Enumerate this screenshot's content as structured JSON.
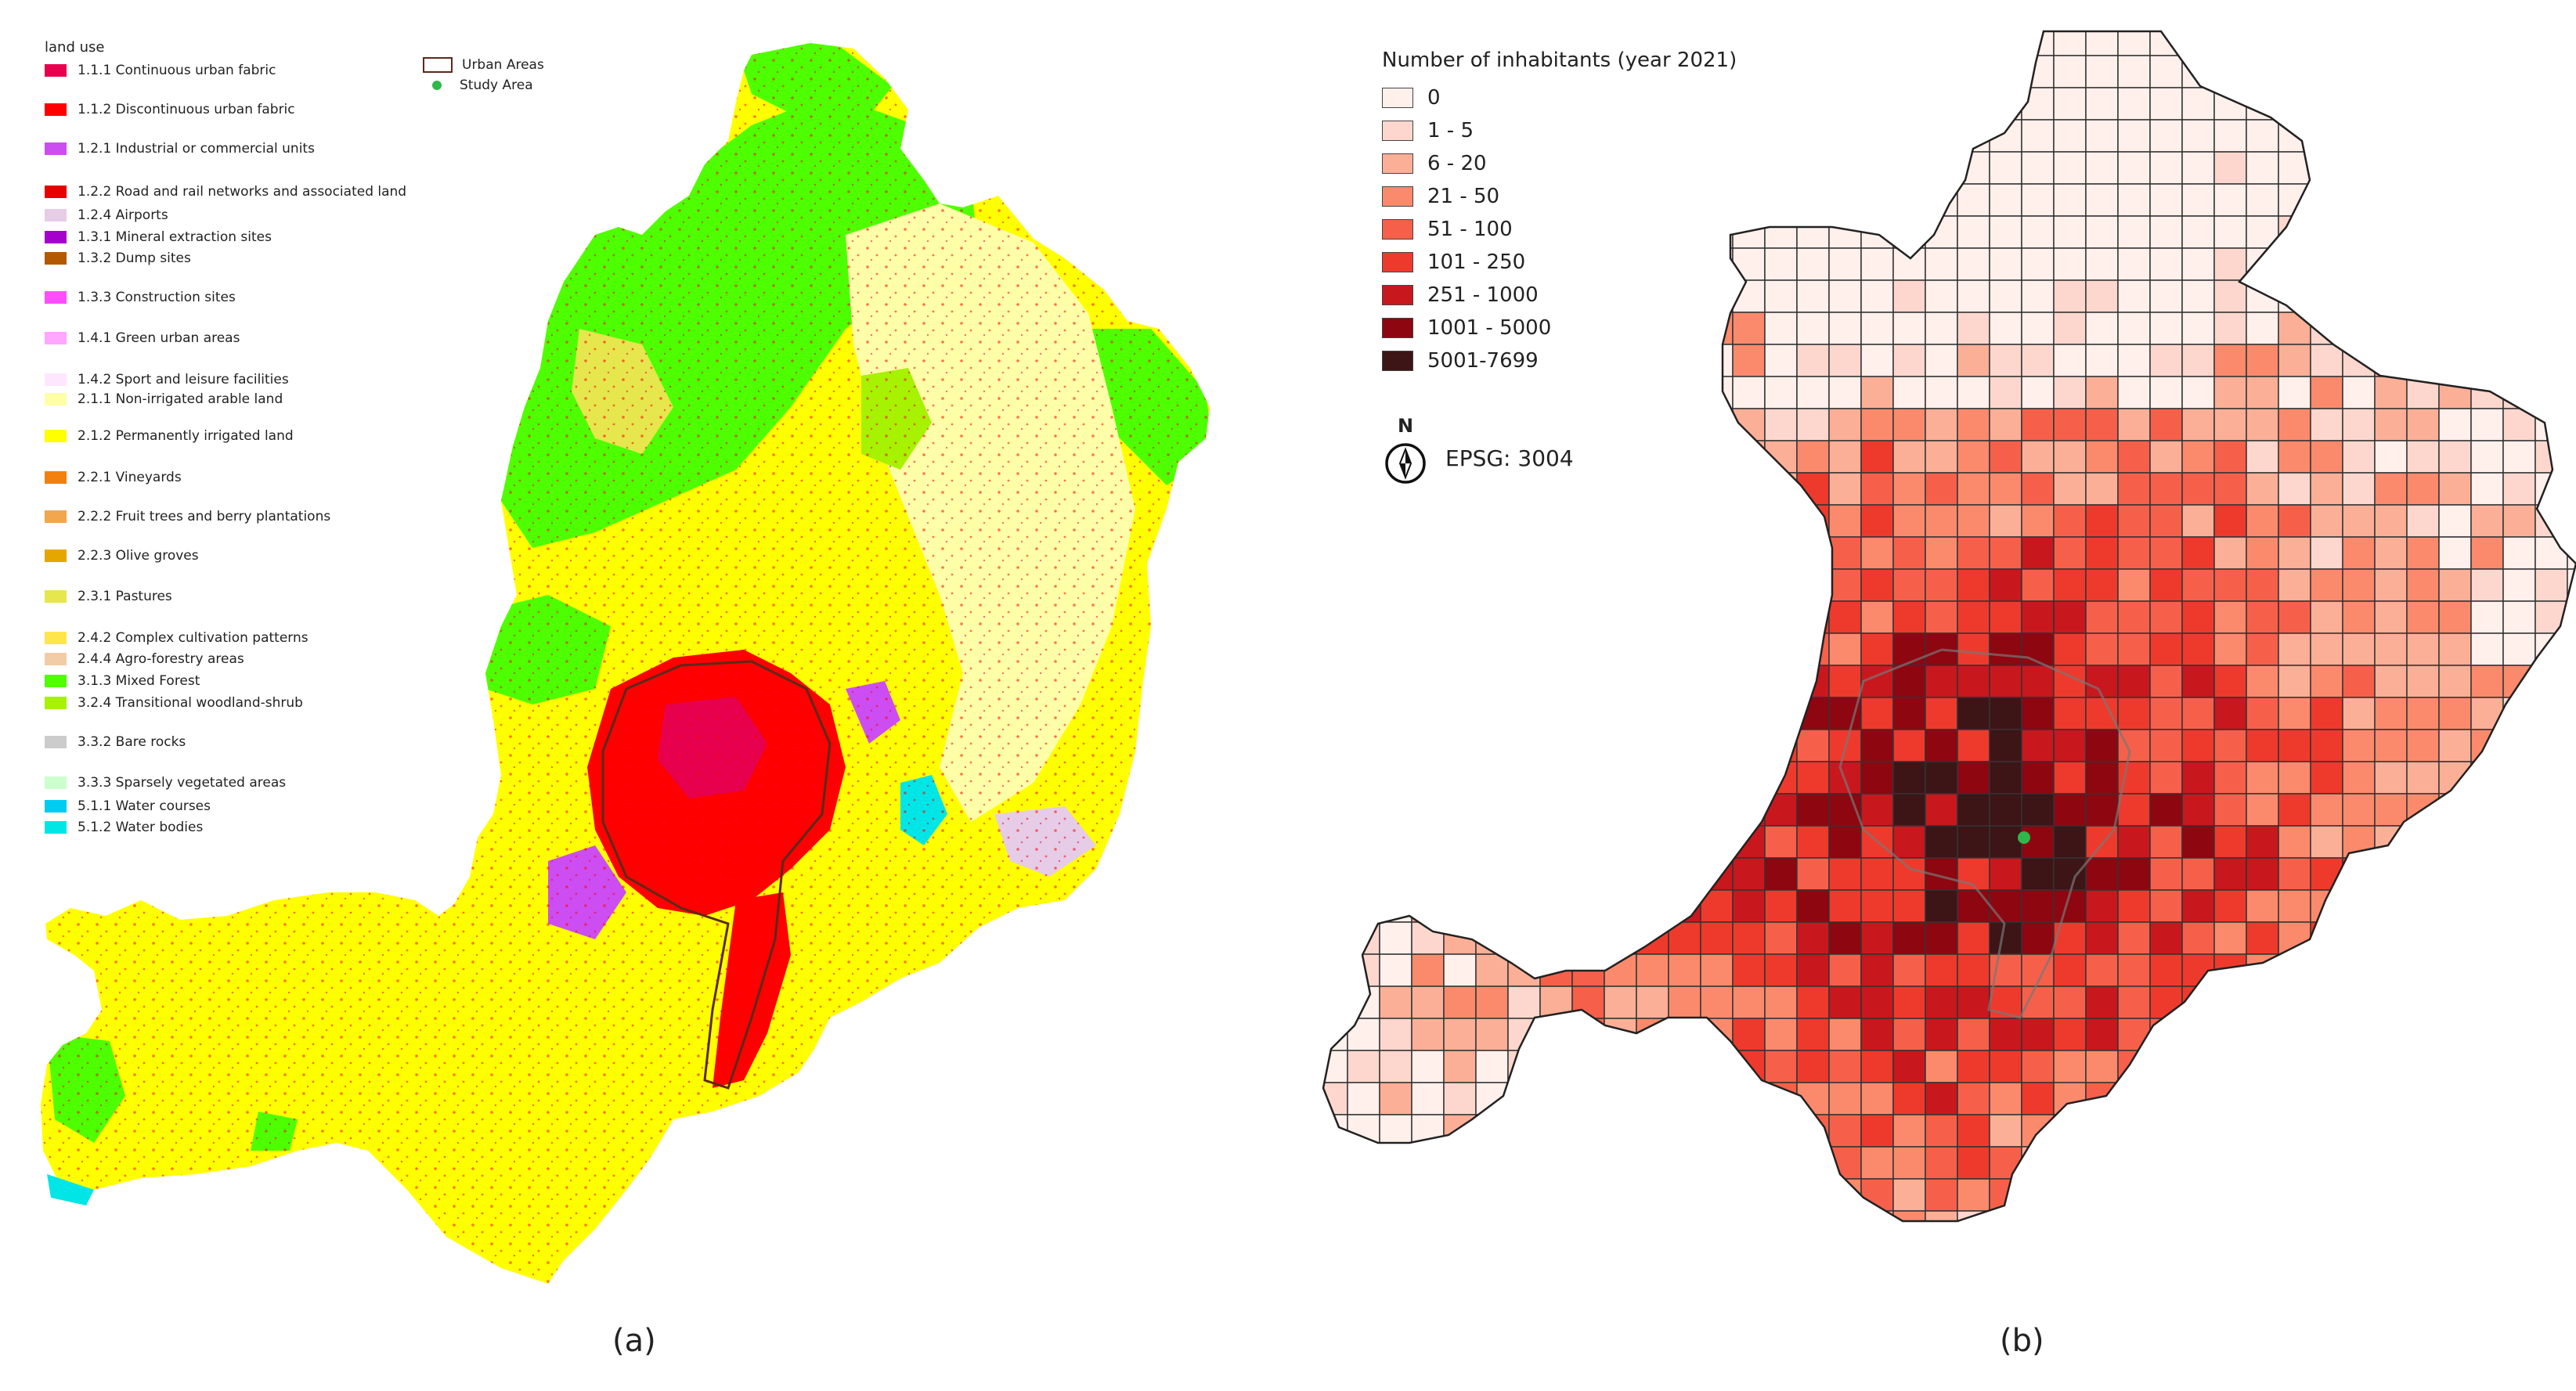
{
  "panel_a": {
    "legend_title": "land use",
    "land_use": [
      {
        "label": "1.1.1 Continuous urban fabric",
        "color": "#e6004d"
      },
      {
        "label": "1.1.2 Discontinuous urban fabric",
        "color": "#ff0000"
      },
      {
        "label": "1.2.1 Industrial or commercial units",
        "color": "#cc4df2"
      },
      {
        "label": "1.2.2 Road and rail networks and associated land",
        "color": "#e60000"
      },
      {
        "label": "1.2.4 Airports",
        "color": "#e6cce6"
      },
      {
        "label": "1.3.1 Mineral extraction sites",
        "color": "#a600cc"
      },
      {
        "label": "1.3.2 Dump sites",
        "color": "#b35900"
      },
      {
        "label": "1.3.3 Construction sites",
        "color": "#ff4dff"
      },
      {
        "label": "1.4.1 Green urban areas",
        "color": "#ffa6ff"
      },
      {
        "label": "1.4.2 Sport and leisure facilities",
        "color": "#ffe6ff"
      },
      {
        "label": "2.1.1 Non-irrigated arable land",
        "color": "#ffffa8"
      },
      {
        "label": "2.1.2 Permanently irrigated land",
        "color": "#ffff00"
      },
      {
        "label": "2.2.1 Vineyards",
        "color": "#f2800d"
      },
      {
        "label": "2.2.2 Fruit trees and berry plantations",
        "color": "#f2a64d"
      },
      {
        "label": "2.2.3 Olive groves",
        "color": "#e6a600"
      },
      {
        "label": "2.3.1 Pastures",
        "color": "#e6e64d"
      },
      {
        "label": "2.4.2 Complex cultivation patterns",
        "color": "#ffe64d"
      },
      {
        "label": "2.4.4 Agro-forestry areas",
        "color": "#f2cca6"
      },
      {
        "label": "3.1.3 Mixed Forest",
        "color": "#4dff00"
      },
      {
        "label": "3.2.4 Transitional woodland-shrub",
        "color": "#a6f200"
      },
      {
        "label": "3.3.2 Bare rocks",
        "color": "#cccccc"
      },
      {
        "label": "3.3.3 Sparsely vegetated areas",
        "color": "#ccffcc"
      },
      {
        "label": "5.1.1 Water courses",
        "color": "#00ccf2"
      },
      {
        "label": "5.1.2 Water bodies",
        "color": "#00e6e6"
      }
    ],
    "urban_areas_label": "Urban Areas",
    "study_area_label": "Study Area",
    "caption": "(a)"
  },
  "panel_b": {
    "legend_title": "Number of inhabitants (year 2021)",
    "classes": [
      {
        "label": "0",
        "color": "#fff0ec"
      },
      {
        "label": "1 - 5",
        "color": "#fdd7cd"
      },
      {
        "label": "6 - 20",
        "color": "#fcaf97"
      },
      {
        "label": "21 - 50",
        "color": "#fb8a6d"
      },
      {
        "label": "51 - 100",
        "color": "#f6604a"
      },
      {
        "label": "101 - 250",
        "color": "#ee3a2c"
      },
      {
        "label": "251 - 1000",
        "color": "#c9171e"
      },
      {
        "label": "1001 - 5000",
        "color": "#8e0610"
      },
      {
        "label": "5001-7699",
        "color": "#3d1517"
      }
    ],
    "north_label": "N",
    "crs": "EPSG: 3004",
    "caption": "(b)"
  },
  "colors": {
    "urban_outline": "#5a2a1a",
    "study_area_dot": "#2eb84b",
    "grid_line": "#333333"
  }
}
